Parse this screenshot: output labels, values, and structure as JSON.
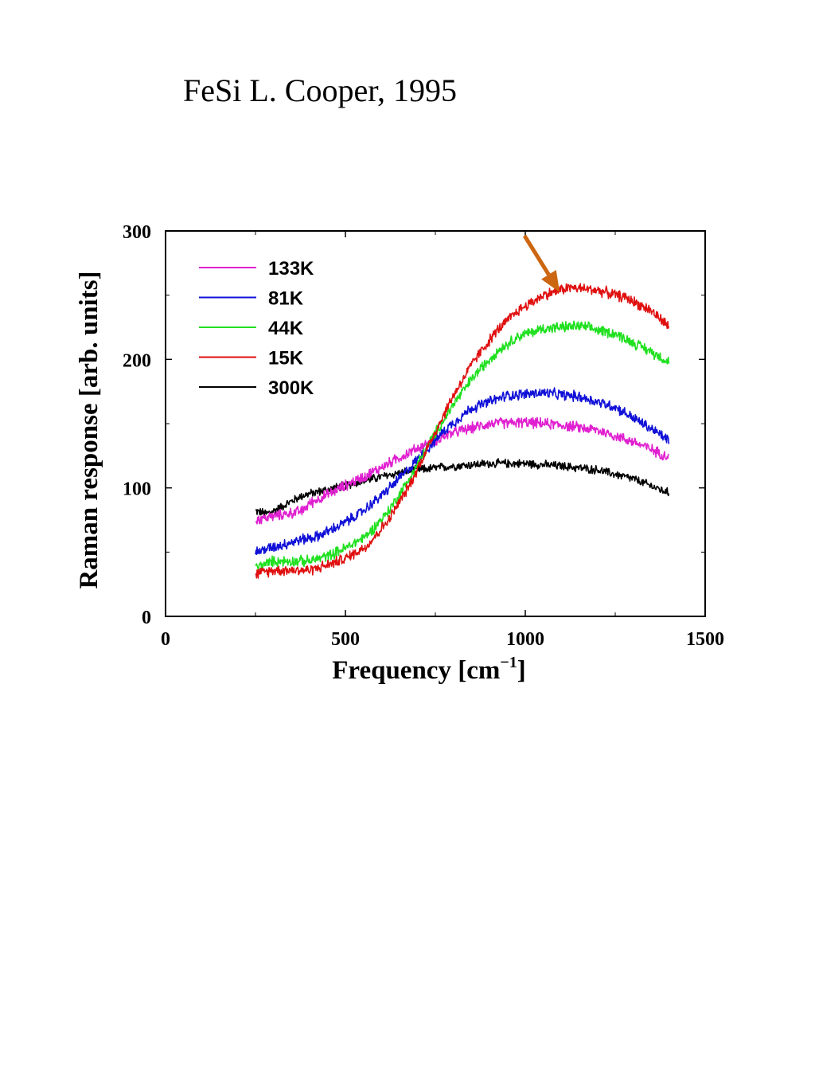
{
  "page": {
    "title": "FeSi L. Cooper, 1995"
  },
  "chart_data": {
    "type": "line",
    "title": "",
    "xlabel": "Frequency [cm",
    "xlabel_sup": "−1",
    "xlabel_suffix": "]",
    "ylabel": "Raman response [arb. units]",
    "xlim": [
      0,
      1500
    ],
    "ylim": [
      0,
      300
    ],
    "x_ticks": [
      0,
      500,
      1000,
      1500
    ],
    "y_ticks": [
      0,
      100,
      200,
      300
    ],
    "grid": false,
    "legend_position": "top-left",
    "annotation": {
      "type": "arrow",
      "color": "#cc6611",
      "points_to": {
        "x": 1080,
        "y": 248
      }
    },
    "series": [
      {
        "name": "133K",
        "color": "#e020d0",
        "noise": 5,
        "x": [
          250,
          300,
          380,
          400,
          460,
          500,
          560,
          620,
          680,
          740,
          800,
          900,
          1000,
          1100,
          1200,
          1300,
          1400
        ],
        "y": [
          75,
          78,
          82,
          88,
          96,
          102,
          110,
          119,
          128,
          136,
          143,
          150,
          151,
          149,
          145,
          136,
          124
        ]
      },
      {
        "name": "81K",
        "color": "#1010d8",
        "noise": 5,
        "x": [
          250,
          300,
          380,
          420,
          480,
          540,
          600,
          660,
          720,
          780,
          850,
          950,
          1050,
          1150,
          1250,
          1350,
          1400
        ],
        "y": [
          50,
          54,
          60,
          62,
          70,
          80,
          94,
          110,
          128,
          146,
          162,
          172,
          174,
          171,
          163,
          146,
          137
        ]
      },
      {
        "name": "44K",
        "color": "#20e020",
        "noise": 5,
        "x": [
          250,
          300,
          400,
          450,
          500,
          560,
          620,
          680,
          740,
          800,
          860,
          920,
          980,
          1050,
          1150,
          1250,
          1350,
          1400
        ],
        "y": [
          38,
          43,
          43,
          47,
          53,
          63,
          82,
          108,
          138,
          165,
          188,
          206,
          218,
          224,
          226,
          220,
          206,
          198
        ]
      },
      {
        "name": "15K",
        "color": "#e01010",
        "noise": 5,
        "x": [
          250,
          300,
          400,
          450,
          500,
          560,
          620,
          680,
          740,
          800,
          860,
          920,
          980,
          1050,
          1120,
          1200,
          1280,
          1350,
          1400
        ],
        "y": [
          33,
          36,
          36,
          40,
          45,
          55,
          75,
          103,
          138,
          172,
          200,
          222,
          238,
          250,
          256,
          254,
          248,
          238,
          225
        ]
      },
      {
        "name": "300K",
        "color": "#000000",
        "noise": 4,
        "x": [
          250,
          280,
          300,
          340,
          380,
          440,
          500,
          560,
          620,
          700,
          800,
          900,
          1000,
          1100,
          1200,
          1300,
          1400
        ],
        "y": [
          82,
          80,
          82,
          88,
          94,
          98,
          102,
          106,
          110,
          114,
          117,
          119,
          119,
          117,
          114,
          107,
          96
        ]
      }
    ]
  }
}
